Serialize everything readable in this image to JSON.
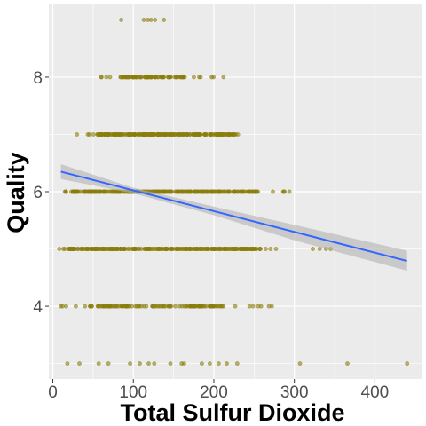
{
  "chart_data": {
    "type": "scatter",
    "xlabel": "Total Sulfur Dioxide",
    "ylabel": "Quality",
    "xlim": [
      -5,
      458
    ],
    "ylim": [
      2.73,
      9.27
    ],
    "x_ticks": [
      0,
      100,
      200,
      300,
      400
    ],
    "y_ticks": [
      4,
      6,
      8
    ],
    "x_tick_labels": [
      "0",
      "100",
      "200",
      "300",
      "400"
    ],
    "y_tick_labels": [
      "4",
      "6",
      "8"
    ],
    "grid": true,
    "legend": "none",
    "colors": {
      "panel": "#ebebeb",
      "grid": "#ffffff",
      "points": "#8b7d0b",
      "trend": "#3366ff",
      "band": "#b3b3b3"
    },
    "point_groups": [
      {
        "quality": 9,
        "x": [
          85,
          113,
          118,
          122,
          127,
          138
        ]
      },
      {
        "quality": 8,
        "x_min": 60,
        "x_max": 212,
        "dense_min": 80,
        "dense_max": 165,
        "count": 80
      },
      {
        "quality": 7,
        "x_min": 30,
        "x_max": 230,
        "dense_min": 55,
        "dense_max": 225,
        "count": 220
      },
      {
        "quality": 6,
        "x_min": 15,
        "x_max": 294,
        "dense_min": 25,
        "dense_max": 255,
        "count": 280
      },
      {
        "quality": 5,
        "x_min": 8,
        "x_max": 345,
        "dense_min": 20,
        "dense_max": 255,
        "count": 260
      },
      {
        "quality": 4,
        "x_min": 10,
        "x_max": 272,
        "dense_min": 45,
        "dense_max": 215,
        "count": 110
      },
      {
        "quality": 3,
        "x": [
          18,
          33,
          57,
          69,
          96,
          108,
          119,
          126,
          146,
          160,
          163,
          185,
          195,
          206,
          216,
          229,
          307,
          366,
          440
        ]
      }
    ],
    "trend_line": {
      "x": [
        10,
        440
      ],
      "y": [
        6.35,
        4.79
      ]
    },
    "confidence_band": {
      "x": [
        10,
        100,
        200,
        300,
        440
      ],
      "lower": [
        6.22,
        5.97,
        5.59,
        5.15,
        4.62
      ],
      "upper": [
        6.48,
        6.07,
        5.74,
        5.42,
        4.97
      ]
    }
  }
}
